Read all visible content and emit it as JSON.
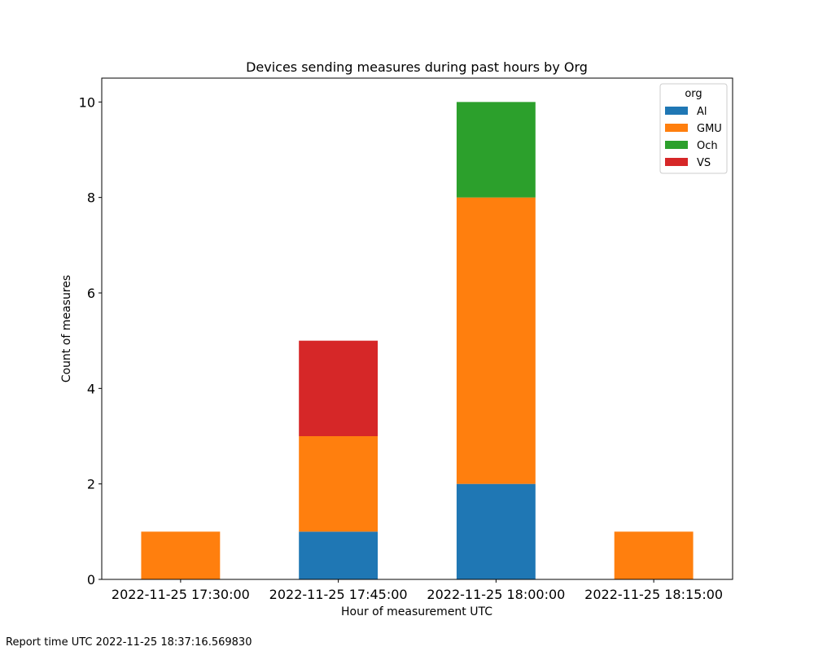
{
  "chart_data": {
    "type": "bar",
    "stacked": true,
    "title": "Devices sending measures during past hours by Org",
    "xlabel": "Hour of measurement UTC",
    "ylabel": "Count of measures",
    "categories": [
      "2022-11-25 17:30:00",
      "2022-11-25 17:45:00",
      "2022-11-25 18:00:00",
      "2022-11-25 18:15:00"
    ],
    "series": [
      {
        "name": "Al",
        "color": "#1f77b4",
        "values": [
          0,
          1,
          2,
          0
        ]
      },
      {
        "name": "GMU",
        "color": "#ff7f0e",
        "values": [
          1,
          2,
          6,
          1
        ]
      },
      {
        "name": "Och",
        "color": "#2ca02c",
        "values": [
          0,
          0,
          2,
          0
        ]
      },
      {
        "name": "VS",
        "color": "#d62728",
        "values": [
          0,
          2,
          0,
          0
        ]
      }
    ],
    "ylim": [
      0,
      10.5
    ],
    "yticks": [
      0,
      2,
      4,
      6,
      8,
      10
    ],
    "grid": false,
    "legend": {
      "title": "org",
      "placement": "top-right"
    }
  },
  "footer": {
    "report_time": "Report time UTC 2022-11-25 18:37:16.569830"
  }
}
